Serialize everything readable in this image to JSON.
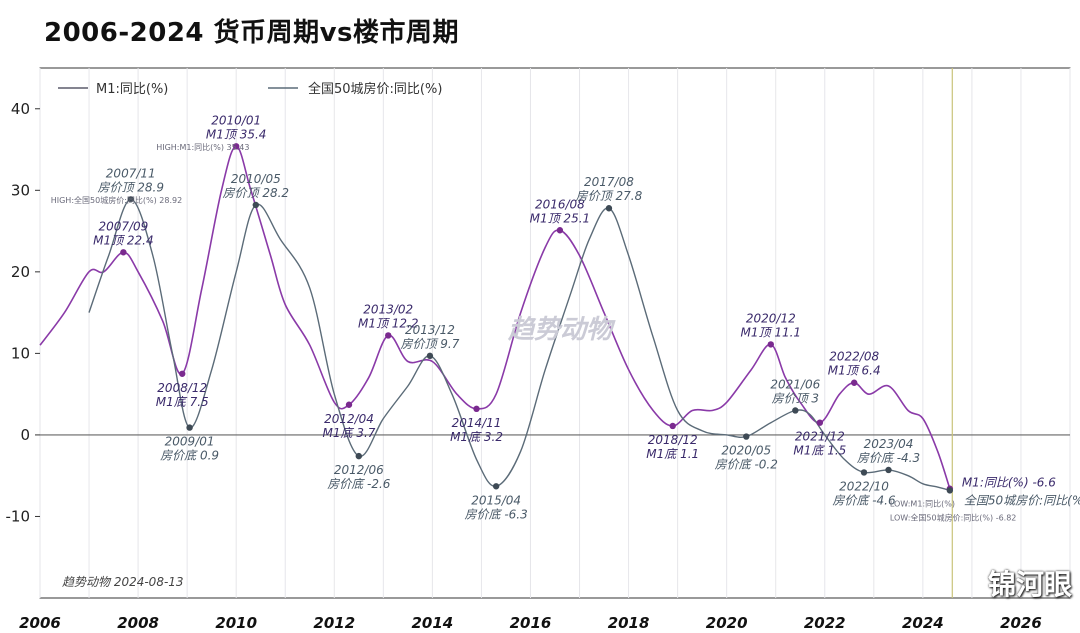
{
  "title": "2006-2024 货币周期vs楼市周期",
  "watermark": "趋势动物",
  "footer_text": "趋势动物  2024-08-13",
  "corner_logo": "锦河眼",
  "colors": {
    "m1": "#8a3aa8",
    "house": "#5b6b78",
    "zero_line": "#666666",
    "grid": "#e6e6ea",
    "now_line": "#c9c37a",
    "marker": "#7a2a8f"
  },
  "chart_data": {
    "type": "line",
    "title": "2006-2024 货币周期vs楼市周期",
    "xlabel": "",
    "ylabel": "",
    "xlim": [
      2006.0,
      2027.0
    ],
    "ylim": [
      -20,
      45
    ],
    "y_ticks": [
      -10,
      0,
      10,
      20,
      30,
      40
    ],
    "x_ticks": [
      2006,
      2008,
      2010,
      2012,
      2014,
      2016,
      2018,
      2020,
      2022,
      2024,
      2026
    ],
    "grid": true,
    "legend_position": "top-left",
    "current_date_line": 2024.6,
    "series": [
      {
        "name": "M1:同比(%)",
        "x": [
          2006.0,
          2006.5,
          2007.0,
          2007.3,
          2007.7,
          2008.0,
          2008.5,
          2008.9,
          2009.3,
          2009.7,
          2010.0,
          2010.3,
          2010.7,
          2011.0,
          2011.5,
          2012.0,
          2012.3,
          2012.7,
          2013.1,
          2013.5,
          2014.0,
          2014.5,
          2014.9,
          2015.3,
          2015.8,
          2016.3,
          2016.6,
          2017.0,
          2017.5,
          2018.0,
          2018.5,
          2018.9,
          2019.3,
          2019.7,
          2020.0,
          2020.5,
          2020.9,
          2021.2,
          2021.5,
          2021.9,
          2022.3,
          2022.6,
          2022.9,
          2023.3,
          2023.7,
          2024.0,
          2024.3,
          2024.55
        ],
        "values": [
          11,
          15,
          20,
          20,
          22.4,
          20,
          14,
          7.5,
          18,
          30,
          35.4,
          30,
          22,
          16,
          11,
          4,
          3.7,
          7,
          12.2,
          9,
          9,
          5,
          3.2,
          5,
          15,
          23,
          25.1,
          22,
          15,
          8,
          3,
          1.1,
          3,
          3,
          4,
          8,
          11.1,
          7,
          4,
          1.5,
          5,
          6.4,
          5,
          6,
          3,
          2,
          -2,
          -6.6
        ]
      },
      {
        "name": "全国50城房价:同比(%)",
        "x": [
          2007.0,
          2007.4,
          2007.85,
          2008.3,
          2008.7,
          2009.05,
          2009.5,
          2010.0,
          2010.4,
          2010.9,
          2011.5,
          2012.0,
          2012.5,
          2013.0,
          2013.5,
          2013.95,
          2014.4,
          2014.9,
          2015.3,
          2015.8,
          2016.3,
          2016.8,
          2017.2,
          2017.6,
          2018.0,
          2018.5,
          2019.0,
          2019.5,
          2020.0,
          2020.4,
          2020.9,
          2021.4,
          2021.7,
          2022.0,
          2022.4,
          2022.8,
          2023.3,
          2023.7,
          2024.0,
          2024.3,
          2024.55
        ],
        "values": [
          15,
          22,
          28.9,
          22,
          10,
          0.9,
          8,
          20,
          28.2,
          24,
          18,
          5,
          -2.6,
          2,
          6,
          9.7,
          5,
          -3,
          -6.3,
          -2,
          8,
          17,
          24,
          27.8,
          22,
          12,
          3,
          0.5,
          0,
          -0.2,
          1.5,
          3,
          2.5,
          0,
          -3,
          -4.6,
          -4.3,
          -5,
          -6,
          -6.4,
          -6.8
        ]
      }
    ],
    "annotations": [
      {
        "lines": [
          "2007/11",
          "房价顶 28.9"
        ],
        "x": 2007.85,
        "y": 28.9,
        "series": 1,
        "pos": "above"
      },
      {
        "lines": [
          "2007/09",
          "M1顶 22.4"
        ],
        "x": 2007.7,
        "y": 22.4,
        "series": 0,
        "pos": "above"
      },
      {
        "lines": [
          "2008/12",
          "M1底 7.5"
        ],
        "x": 2008.9,
        "y": 7.5,
        "series": 0,
        "pos": "below"
      },
      {
        "lines": [
          "2009/01",
          "房价底 0.9"
        ],
        "x": 2009.05,
        "y": 0.9,
        "series": 1,
        "pos": "below"
      },
      {
        "lines": [
          "2010/01",
          "M1顶 35.4"
        ],
        "x": 2010.0,
        "y": 35.4,
        "series": 0,
        "pos": "above"
      },
      {
        "lines": [
          "2010/05",
          "房价顶 28.2"
        ],
        "x": 2010.4,
        "y": 28.2,
        "series": 1,
        "pos": "above"
      },
      {
        "lines": [
          "2012/04",
          "M1底 3.7"
        ],
        "x": 2012.3,
        "y": 3.7,
        "series": 0,
        "pos": "below"
      },
      {
        "lines": [
          "2012/06",
          "房价底 -2.6"
        ],
        "x": 2012.5,
        "y": -2.6,
        "series": 1,
        "pos": "below"
      },
      {
        "lines": [
          "2013/02",
          "M1顶 12.2"
        ],
        "x": 2013.1,
        "y": 12.2,
        "series": 0,
        "pos": "above"
      },
      {
        "lines": [
          "2013/12",
          "房价顶 9.7"
        ],
        "x": 2013.95,
        "y": 9.7,
        "series": 1,
        "pos": "above"
      },
      {
        "lines": [
          "2014/11",
          "M1底 3.2"
        ],
        "x": 2014.9,
        "y": 3.2,
        "series": 0,
        "pos": "below"
      },
      {
        "lines": [
          "2015/04",
          "房价底 -6.3"
        ],
        "x": 2015.3,
        "y": -6.3,
        "series": 1,
        "pos": "below"
      },
      {
        "lines": [
          "2016/08",
          "M1顶 25.1"
        ],
        "x": 2016.6,
        "y": 25.1,
        "series": 0,
        "pos": "above"
      },
      {
        "lines": [
          "2017/08",
          "房价顶 27.8"
        ],
        "x": 2017.6,
        "y": 27.8,
        "series": 1,
        "pos": "above"
      },
      {
        "lines": [
          "2018/12",
          "M1底 1.1"
        ],
        "x": 2018.9,
        "y": 1.1,
        "series": 0,
        "pos": "below"
      },
      {
        "lines": [
          "2020/05",
          "房价底 -0.2"
        ],
        "x": 2020.4,
        "y": -0.2,
        "series": 1,
        "pos": "below"
      },
      {
        "lines": [
          "2020/12",
          "M1顶 11.1"
        ],
        "x": 2020.9,
        "y": 11.1,
        "series": 0,
        "pos": "above"
      },
      {
        "lines": [
          "2021/06",
          "房价顶 3"
        ],
        "x": 2021.4,
        "y": 3.0,
        "series": 1,
        "pos": "above"
      },
      {
        "lines": [
          "2021/12",
          "M1底 1.5"
        ],
        "x": 2021.9,
        "y": 1.5,
        "series": 0,
        "pos": "below"
      },
      {
        "lines": [
          "2022/08",
          "M1顶 6.4"
        ],
        "x": 2022.6,
        "y": 6.4,
        "series": 0,
        "pos": "above"
      },
      {
        "lines": [
          "2022/10",
          "房价底 -4.6"
        ],
        "x": 2022.8,
        "y": -4.6,
        "series": 1,
        "pos": "below"
      },
      {
        "lines": [
          "2023/04",
          "房价底 -4.3"
        ],
        "x": 2023.3,
        "y": -4.3,
        "series": 1,
        "pos": "above"
      },
      {
        "lines": [
          "M1:同比(%) -6.6"
        ],
        "x": 2024.55,
        "y": -6.6,
        "series": 0,
        "pos": "right"
      },
      {
        "lines": [
          "全国50城房价:同比(%)"
        ],
        "x": 2024.55,
        "y": -6.8,
        "series": 1,
        "pos": "right2"
      }
    ],
    "extreme_labels": [
      {
        "text": "HIGH:M1:同比(%) 35.43",
        "x": 2010.0,
        "y": 35.43
      },
      {
        "text": "HIGH:全国50城房价:同比(%) 28.92",
        "x": 2007.85,
        "y": 28.92
      },
      {
        "text": "LOW:M1:同比(%)",
        "x": 2024.55,
        "y": -8.3
      },
      {
        "text": "LOW:全国50城房价:同比(%) -6.82",
        "x": 2024.55,
        "y": -10.0
      }
    ]
  }
}
